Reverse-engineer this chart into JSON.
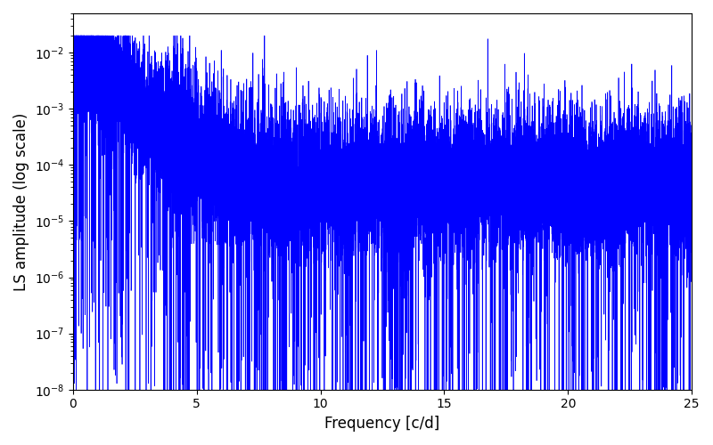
{
  "title": "",
  "xlabel": "Frequency [c/d]",
  "ylabel": "LS amplitude (log scale)",
  "xlim": [
    0,
    25
  ],
  "ylim": [
    1e-08,
    0.05
  ],
  "line_color": "#0000FF",
  "line_width": 0.5,
  "figsize": [
    8.0,
    5.0
  ],
  "dpi": 100,
  "freq_min": 0.001,
  "freq_max": 25.0,
  "n_points": 15000,
  "seed": 12345,
  "background_color": "#ffffff"
}
